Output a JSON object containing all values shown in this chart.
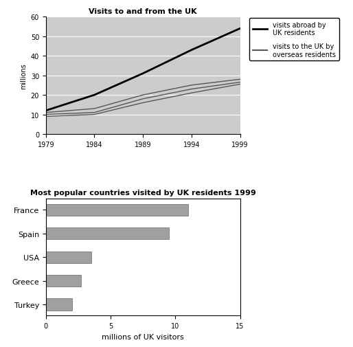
{
  "line_title": "Visits to and from the UK",
  "years": [
    1979,
    1984,
    1989,
    1994,
    1999
  ],
  "visits_abroad": [
    12,
    20,
    31,
    43,
    54
  ],
  "visits_to_uk_upper": [
    11,
    13,
    20,
    25,
    28
  ],
  "visits_to_uk_mid": [
    10,
    11,
    18,
    23,
    26.5
  ],
  "visits_to_uk_lower": [
    9,
    10,
    16,
    21,
    25.5
  ],
  "line_ylabel": "millions",
  "line_ylim": [
    0,
    60
  ],
  "line_xlim": [
    1979,
    1999
  ],
  "line_yticks": [
    0,
    10,
    20,
    30,
    40,
    50,
    60
  ],
  "line_xticks": [
    1979,
    1984,
    1989,
    1994,
    1999
  ],
  "legend_abroad": "visits abroad by\nUK residents",
  "legend_to_uk": "visits to the UK by\noverseas residents",
  "bar_title": "Most popular countries visited by UK residents 1999",
  "bar_countries": [
    "France",
    "Spain",
    "USA",
    "Greece",
    "Turkey"
  ],
  "bar_values": [
    11.0,
    9.5,
    3.5,
    2.7,
    2.0
  ],
  "bar_xlim": [
    0,
    15
  ],
  "bar_xticks": [
    0,
    5,
    10,
    15
  ],
  "bar_xlabel": "millions of UK visitors",
  "bar_color": "#a0a0a0",
  "plot_bg_color": "#cccccc",
  "line_color_abroad": "#000000",
  "line_color_to_uk": "#555555"
}
